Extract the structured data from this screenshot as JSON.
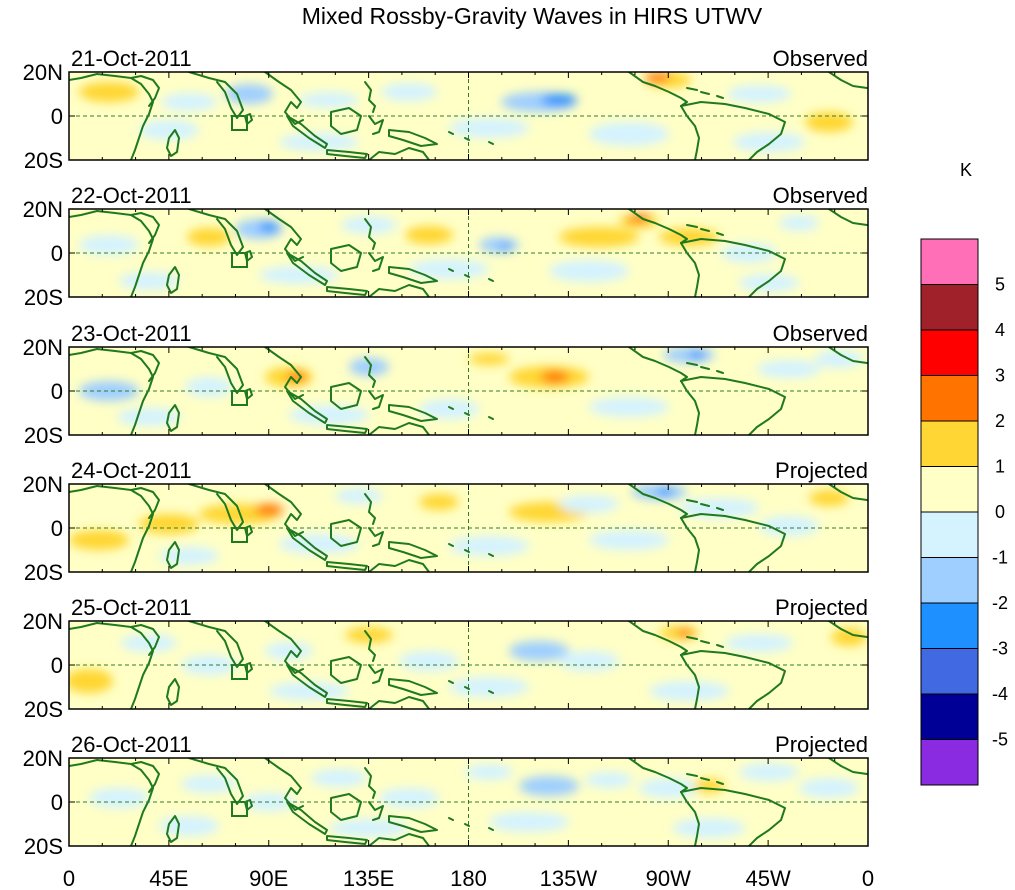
{
  "title": "Mixed Rossby-Gravity Waves in HIRS UTWV",
  "colorbar": {
    "unit": "K",
    "levels": [
      "5",
      "4",
      "3",
      "2",
      "1",
      "0",
      "-1",
      "-2",
      "-3",
      "-4",
      "-5"
    ],
    "colors": [
      "#ff6fb7",
      "#a0212a",
      "#ff0000",
      "#ff7400",
      "#ffd633",
      "#ffffc6",
      "#d4f3ff",
      "#9fcfff",
      "#1e90ff",
      "#4169e1",
      "#000096",
      "#8a2be2"
    ]
  },
  "latitude_labels": [
    "20N",
    "0",
    "20S"
  ],
  "longitude_labels": [
    "0",
    "45E",
    "90E",
    "135E",
    "180",
    "135W",
    "90W",
    "45W",
    "0"
  ],
  "panels": [
    {
      "date": "21-Oct-2011",
      "type": "Observed"
    },
    {
      "date": "22-Oct-2011",
      "type": "Observed"
    },
    {
      "date": "23-Oct-2011",
      "type": "Observed"
    },
    {
      "date": "24-Oct-2011",
      "type": "Projected"
    },
    {
      "date": "25-Oct-2011",
      "type": "Projected"
    },
    {
      "date": "26-Oct-2011",
      "type": "Projected"
    }
  ],
  "land_color": "#1f7a1f",
  "grid_color": "#2e7d32"
}
